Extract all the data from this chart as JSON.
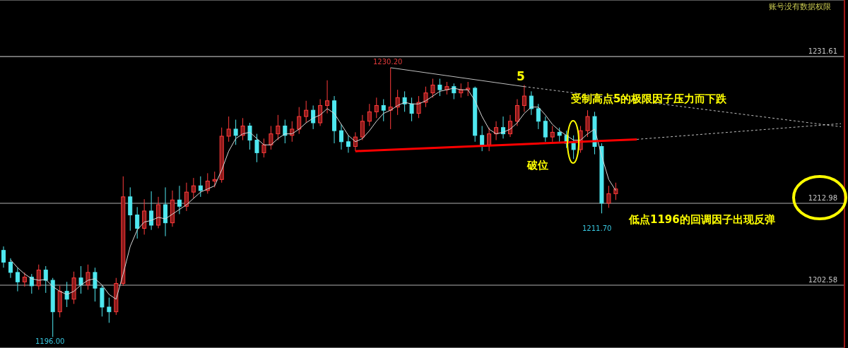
{
  "chart_data": {
    "type": "candlestick",
    "categories": [
      null,
      null,
      null,
      null,
      null,
      null,
      null,
      null,
      null,
      null,
      null,
      null,
      null,
      null,
      null,
      null,
      null,
      null,
      null,
      null,
      null,
      null,
      null,
      null,
      null,
      null,
      null,
      null,
      null,
      null,
      null,
      null,
      null,
      null,
      null,
      null,
      null,
      null,
      null,
      null,
      null,
      null,
      null,
      null,
      null,
      null,
      null,
      null,
      null,
      null,
      null,
      null,
      null,
      null,
      null,
      null,
      null,
      null,
      null,
      null,
      null,
      null,
      null,
      null,
      null,
      null,
      null,
      null,
      null,
      null,
      null,
      null,
      null,
      null,
      null,
      null,
      null,
      null,
      null,
      null,
      null,
      null,
      null,
      null,
      null,
      null,
      null,
      null,
      null,
      null,
      null,
      null,
      null,
      null,
      null,
      null,
      null,
      null,
      null,
      null,
      null,
      null,
      null,
      null,
      null,
      null,
      null,
      null,
      null,
      null,
      null,
      null,
      null,
      null,
      null,
      null,
      null,
      null,
      null,
      null
    ],
    "ohlc": [
      [
        1207,
        1207.5,
        1204.8,
        1205.5
      ],
      [
        1205.5,
        1206,
        1203.5,
        1204.2
      ],
      [
        1204.2,
        1204.8,
        1201.8,
        1203
      ],
      [
        1203,
        1204.2,
        1202.4,
        1203.6
      ],
      [
        1203.6,
        1204,
        1201.5,
        1202.5
      ],
      [
        1202.5,
        1205.2,
        1202,
        1204.5
      ],
      [
        1204.5,
        1205,
        1201.6,
        1203.2
      ],
      [
        1203.2,
        1203.5,
        1196,
        1199.2
      ],
      [
        1199.2,
        1202.5,
        1198.5,
        1201.8
      ],
      [
        1201.8,
        1203,
        1199.8,
        1200.8
      ],
      [
        1200.8,
        1204.3,
        1200.2,
        1203.5
      ],
      [
        1203.5,
        1205,
        1201.5,
        1202.6
      ],
      [
        1202.6,
        1205.2,
        1202,
        1204.2
      ],
      [
        1204.2,
        1204.8,
        1200.5,
        1202.2
      ],
      [
        1202.2,
        1202.5,
        1198.6,
        1199.8
      ],
      [
        1199.8,
        1201,
        1197.8,
        1199.2
      ],
      [
        1199.2,
        1203.5,
        1198.8,
        1202.8
      ],
      [
        1202.8,
        1216.4,
        1202.5,
        1213.8
      ],
      [
        1213.8,
        1215,
        1209.5,
        1211.5
      ],
      [
        1211.5,
        1212.5,
        1208.5,
        1209.8
      ],
      [
        1209.8,
        1213.5,
        1209,
        1212
      ],
      [
        1212,
        1214.5,
        1209.6,
        1210.2
      ],
      [
        1210.2,
        1213.8,
        1209.8,
        1212.8
      ],
      [
        1212.8,
        1215,
        1208.8,
        1210.5
      ],
      [
        1210.5,
        1214.6,
        1210,
        1213.4
      ],
      [
        1213.4,
        1215.2,
        1211.6,
        1212.6
      ],
      [
        1212.6,
        1215.6,
        1212,
        1214.4
      ],
      [
        1214.4,
        1216.2,
        1213.6,
        1215.2
      ],
      [
        1215.2,
        1216.4,
        1213.8,
        1214.6
      ],
      [
        1214.6,
        1216.8,
        1214.2,
        1215.8
      ],
      [
        1215.8,
        1217,
        1215,
        1216
      ],
      [
        1216,
        1222.6,
        1215.6,
        1221.5
      ],
      [
        1221.5,
        1224,
        1220.8,
        1222.4
      ],
      [
        1222.4,
        1223.6,
        1220.4,
        1221.6
      ],
      [
        1221.6,
        1223.8,
        1221,
        1222.8
      ],
      [
        1222.8,
        1223.2,
        1219.8,
        1221
      ],
      [
        1221,
        1221.8,
        1218.2,
        1219.4
      ],
      [
        1219.4,
        1221.2,
        1218.8,
        1220.4
      ],
      [
        1220.4,
        1222.8,
        1219.8,
        1221.8
      ],
      [
        1221.8,
        1224.2,
        1221,
        1222.8
      ],
      [
        1222.8,
        1223.6,
        1220.6,
        1221.6
      ],
      [
        1221.6,
        1223.4,
        1220.8,
        1222.4
      ],
      [
        1222.4,
        1225.2,
        1221.8,
        1224
      ],
      [
        1224,
        1226,
        1223.2,
        1224.8
      ],
      [
        1224.8,
        1225.4,
        1222.4,
        1223.2
      ],
      [
        1223.2,
        1226.2,
        1222.8,
        1225.4
      ],
      [
        1225.4,
        1228.6,
        1224.4,
        1226
      ],
      [
        1226,
        1226.6,
        1220.6,
        1222.2
      ],
      [
        1222.2,
        1223,
        1219.8,
        1220.8
      ],
      [
        1220.8,
        1221.6,
        1219.4,
        1220.2
      ],
      [
        1220.2,
        1222,
        1219.6,
        1221.4
      ],
      [
        1221.4,
        1224.2,
        1221,
        1223.4
      ],
      [
        1223.4,
        1225.6,
        1222.8,
        1224.6
      ],
      [
        1224.6,
        1226.4,
        1223.8,
        1225.4
      ],
      [
        1225.4,
        1226.2,
        1223.4,
        1224.8
      ],
      [
        1224.8,
        1230.2,
        1222.4,
        1225.2
      ],
      [
        1225.2,
        1227.4,
        1224.2,
        1226.4
      ],
      [
        1226.4,
        1227.2,
        1224.6,
        1225.6
      ],
      [
        1225.6,
        1226.4,
        1223.4,
        1224.4
      ],
      [
        1224.4,
        1226.6,
        1223.8,
        1225.8
      ],
      [
        1225.8,
        1227.8,
        1225.2,
        1227
      ],
      [
        1227,
        1228.8,
        1226.4,
        1228
      ],
      [
        1228,
        1228.8,
        1226.6,
        1227.4
      ],
      [
        1227.4,
        1228.4,
        1226.8,
        1227.8
      ],
      [
        1227.8,
        1228.2,
        1226.2,
        1227
      ],
      [
        1227,
        1228.2,
        1226.4,
        1227.4
      ],
      [
        1227.4,
        1228.4,
        1226.6,
        1227.6
      ],
      [
        1227.6,
        1227.8,
        1220.8,
        1221.6
      ],
      [
        1221.6,
        1222.8,
        1219.6,
        1220.4
      ],
      [
        1220.4,
        1222.6,
        1219.6,
        1221.8
      ],
      [
        1221.8,
        1223.4,
        1221,
        1222.6
      ],
      [
        1222.6,
        1224,
        1221.2,
        1221.8
      ],
      [
        1221.8,
        1224.2,
        1221.4,
        1223.4
      ],
      [
        1223.4,
        1226.2,
        1222.8,
        1225.4
      ],
      [
        1225.4,
        1228,
        1224.6,
        1226.6
      ],
      [
        1226.6,
        1227.2,
        1224.2,
        1225
      ],
      [
        1225,
        1225.6,
        1222.4,
        1223.4
      ],
      [
        1223.4,
        1224,
        1220.8,
        1221.4
      ],
      [
        1221.4,
        1222.8,
        1220.8,
        1222
      ],
      [
        1222,
        1222.6,
        1220.8,
        1221.6
      ],
      [
        1221.6,
        1222.2,
        1220,
        1220.6
      ],
      [
        1220.6,
        1221.6,
        1218.6,
        1219.8
      ],
      [
        1219.8,
        1222.8,
        1219.4,
        1222.2
      ],
      [
        1222.2,
        1224.8,
        1221.4,
        1224
      ],
      [
        1224,
        1224.6,
        1219.2,
        1220.2
      ],
      [
        1220.2,
        1220.6,
        1211.7,
        1213
      ],
      [
        1213,
        1215.2,
        1212.4,
        1214.2
      ],
      [
        1214.2,
        1215.6,
        1213.4,
        1214.8
      ],
      null,
      null,
      null,
      null,
      null,
      null,
      null,
      null,
      null,
      null,
      null,
      null,
      null,
      null,
      null,
      null,
      null,
      null,
      null,
      null,
      null,
      null,
      null,
      null,
      null,
      null,
      null,
      null,
      null,
      null,
      null,
      null
    ],
    "series": [
      {
        "type": "line",
        "color": "#d8d8d8",
        "values": [
          null,
          1205.8,
          1204.8,
          1204,
          1203.4,
          1203.2,
          1203.3,
          1202.4,
          1201.8,
          1201.4,
          1201.8,
          1202.6,
          1203.2,
          1203.4,
          1202.6,
          1201.4,
          1200.8,
          1204,
          1207.5,
          1209.6,
          1210.6,
          1210.8,
          1211.2,
          1211,
          1211.6,
          1212.2,
          1212.8,
          1213.6,
          1214.4,
          1214.8,
          1215.2,
          1217.2,
          1219.6,
          1221.2,
          1221.8,
          1222,
          1221.2,
          1220.4,
          1220.4,
          1221.2,
          1221.8,
          1221.8,
          1222.4,
          1223.2,
          1223.8,
          1224.2,
          1225,
          1224.4,
          1223,
          1221.6,
          1220.8,
          1221.2,
          1222.2,
          1223.4,
          1224.4,
          1224.8,
          1225.4,
          1225.8,
          1225.6,
          1225.6,
          1226,
          1226.6,
          1227.2,
          1227.4,
          1227.6,
          1227.4,
          1227.4,
          1226,
          1224,
          1222.4,
          1221.8,
          1222,
          1222.4,
          1223.2,
          1224.4,
          1225.2,
          1225.2,
          1224.2,
          1223,
          1222.2,
          1221.6,
          1221,
          1221,
          1221.8,
          1222.4,
          1219,
          1216,
          1214.6,
          null,
          null,
          null,
          null,
          null,
          null,
          null,
          null,
          null,
          null,
          null,
          null,
          null,
          null,
          null,
          null,
          null,
          null,
          null,
          null,
          null,
          null,
          null,
          null,
          null,
          null,
          null,
          null,
          null,
          null,
          null,
          null
        ]
      },
      {
        "type": "line",
        "color": "#c0c0c0",
        "values": [
          null,
          null,
          null,
          null,
          null,
          null,
          null,
          null,
          null,
          null,
          null,
          null,
          null,
          null,
          null,
          null,
          null,
          null,
          null,
          null,
          null,
          null,
          null,
          null,
          null,
          null,
          null,
          null,
          null,
          null,
          null,
          null,
          null,
          null,
          null,
          null,
          null,
          null,
          null,
          null,
          null,
          null,
          null,
          null,
          null,
          null,
          null,
          null,
          null,
          null,
          null,
          null,
          null,
          null,
          null,
          1230.2,
          null,
          null,
          null,
          null,
          null,
          null,
          null,
          null,
          null,
          null,
          null,
          null,
          null,
          null,
          null,
          null,
          null,
          null,
          1227.8,
          null,
          null,
          null,
          null,
          null,
          null,
          null,
          null,
          null,
          null,
          null,
          null,
          null,
          null,
          null,
          null,
          null,
          null,
          null,
          null,
          null,
          null,
          null,
          null,
          null,
          null,
          null,
          null,
          null,
          null,
          null,
          null,
          null,
          null,
          null,
          null,
          null,
          null,
          null,
          null,
          null,
          null,
          null,
          null,
          null
        ]
      },
      {
        "type": "line",
        "color": "#c0c0c0",
        "line_style": "dashed",
        "values": [
          null,
          null,
          null,
          null,
          null,
          null,
          null,
          null,
          null,
          null,
          null,
          null,
          null,
          null,
          null,
          null,
          null,
          null,
          null,
          null,
          null,
          null,
          null,
          null,
          null,
          null,
          null,
          null,
          null,
          null,
          null,
          null,
          null,
          null,
          null,
          null,
          null,
          null,
          null,
          null,
          null,
          null,
          null,
          null,
          null,
          null,
          null,
          null,
          null,
          null,
          null,
          null,
          null,
          null,
          null,
          null,
          null,
          null,
          null,
          null,
          null,
          null,
          null,
          null,
          null,
          null,
          null,
          null,
          null,
          null,
          null,
          null,
          null,
          null,
          1227.8,
          null,
          null,
          null,
          null,
          null,
          null,
          null,
          null,
          null,
          null,
          null,
          null,
          null,
          null,
          null,
          null,
          null,
          null,
          null,
          null,
          null,
          null,
          null,
          null,
          null,
          null,
          null,
          null,
          null,
          null,
          null,
          null,
          null,
          null,
          null,
          null,
          null,
          null,
          null,
          null,
          null,
          null,
          null,
          null,
          1222.7
        ]
      },
      {
        "type": "line",
        "color": "#ff0000",
        "values": [
          null,
          null,
          null,
          null,
          null,
          null,
          null,
          null,
          null,
          null,
          null,
          null,
          null,
          null,
          null,
          null,
          null,
          null,
          null,
          null,
          null,
          null,
          null,
          null,
          null,
          null,
          null,
          null,
          null,
          null,
          null,
          null,
          null,
          null,
          null,
          null,
          null,
          null,
          null,
          null,
          null,
          null,
          null,
          null,
          null,
          null,
          null,
          null,
          null,
          null,
          1219.6,
          null,
          null,
          null,
          null,
          null,
          null,
          null,
          null,
          null,
          null,
          null,
          null,
          null,
          null,
          null,
          null,
          null,
          null,
          null,
          null,
          null,
          null,
          null,
          null,
          null,
          null,
          null,
          null,
          null,
          null,
          null,
          null,
          null,
          null,
          null,
          null,
          null,
          null,
          null,
          1221.1,
          null,
          null,
          null,
          null,
          null,
          null,
          null,
          null,
          null,
          null,
          null,
          null,
          null,
          null,
          null,
          null,
          null,
          null,
          null,
          null,
          null,
          null,
          null,
          null,
          null,
          null,
          null,
          null,
          null
        ]
      },
      {
        "type": "line",
        "color": "#c0c0c0",
        "line_style": "dashed",
        "values": [
          null,
          null,
          null,
          null,
          null,
          null,
          null,
          null,
          null,
          null,
          null,
          null,
          null,
          null,
          null,
          null,
          null,
          null,
          null,
          null,
          null,
          null,
          null,
          null,
          null,
          null,
          null,
          null,
          null,
          null,
          null,
          null,
          null,
          null,
          null,
          null,
          null,
          null,
          null,
          null,
          null,
          null,
          null,
          null,
          null,
          null,
          null,
          null,
          null,
          null,
          null,
          null,
          null,
          null,
          null,
          null,
          null,
          null,
          null,
          null,
          null,
          null,
          null,
          null,
          null,
          null,
          null,
          null,
          null,
          null,
          null,
          null,
          null,
          null,
          null,
          null,
          null,
          null,
          null,
          null,
          null,
          null,
          null,
          null,
          null,
          null,
          null,
          null,
          null,
          null,
          1221.1,
          null,
          null,
          null,
          null,
          null,
          null,
          null,
          null,
          null,
          null,
          null,
          null,
          null,
          null,
          null,
          null,
          null,
          null,
          null,
          null,
          null,
          null,
          null,
          null,
          null,
          null,
          null,
          null,
          1223.1
        ]
      }
    ],
    "ylim": [
      1194.6,
      1238.8
    ],
    "yticks": [
      1231.61,
      1212.98,
      1202.58
    ],
    "grid": "y",
    "tick_labels": "y",
    "annotations": [
      "1230.20",
      "1211.70",
      "1196.00",
      "5",
      "受制高点5的极限因子压力而下跌",
      "破位",
      "低点1196的回调因子出现反弹",
      "账号没有数据权限"
    ]
  }
}
